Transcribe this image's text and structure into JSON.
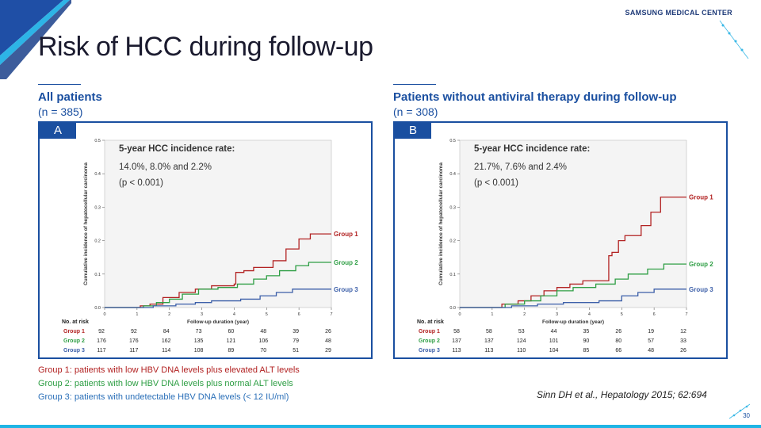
{
  "header": {
    "brand": "SAMSUNG MEDICAL CENTER",
    "title": "Risk of HCC during follow-up",
    "page_number": "30"
  },
  "colors": {
    "group1": "#b22222",
    "group2": "#2e9e44",
    "group3": "#3b5ea8",
    "accent": "#1a4fa0"
  },
  "left": {
    "heading": "All patients",
    "n": "(n = 385)",
    "tag": "A"
  },
  "right": {
    "heading": "Patients without antiviral therapy during follow-up",
    "n": "(n = 308)",
    "tag": "B"
  },
  "notes": {
    "g1": "Group 1: patients with low HBV DNA levels plus elevated ALT levels",
    "g2": "Group 2: patients with low HBV DNA levels plus normal ALT levels",
    "g3": "Group 3: patients with undetectable HBV DNA levels (< 12 IU/ml)"
  },
  "citation": "Sinn DH et al., Hepatology  2015; 62:694",
  "chart_data": [
    {
      "type": "line",
      "ylabel": "Cumulative incidence of hepatocellular carcinoma",
      "xlabel": "Follow-up duration (year)",
      "xlim": [
        0,
        7
      ],
      "ylim": [
        0,
        0.5
      ],
      "x_ticks": [
        "0",
        "1",
        "2",
        "3",
        "4",
        "5",
        "6",
        "7"
      ],
      "y_ticks": [
        "0.0",
        "0.1",
        "0.2",
        "0.3",
        "0.4",
        "0.5"
      ],
      "annotation": {
        "heading": "5-year HCC incidence rate:",
        "values": "14.0%, 8.0% and 2.2%",
        "p": "(p < 0.001)"
      },
      "series": [
        {
          "name": "Group 1",
          "color": "#b22222",
          "x": [
            0,
            1.1,
            1.4,
            1.8,
            2.3,
            2.8,
            3.3,
            4.0,
            4.05,
            4.3,
            4.6,
            5.2,
            5.6,
            6.0,
            6.35,
            7.0
          ],
          "y": [
            0,
            0.005,
            0.01,
            0.03,
            0.045,
            0.055,
            0.065,
            0.07,
            0.105,
            0.11,
            0.12,
            0.14,
            0.175,
            0.205,
            0.22,
            0.22
          ]
        },
        {
          "name": "Group 2",
          "color": "#2e9e44",
          "x": [
            0,
            1.2,
            1.6,
            2.0,
            2.4,
            2.9,
            3.5,
            4.1,
            4.6,
            5.0,
            5.4,
            5.9,
            6.3,
            7.0
          ],
          "y": [
            0,
            0.005,
            0.015,
            0.025,
            0.04,
            0.055,
            0.06,
            0.07,
            0.085,
            0.095,
            0.11,
            0.125,
            0.135,
            0.135
          ]
        },
        {
          "name": "Group 3",
          "color": "#3b5ea8",
          "x": [
            0,
            1.5,
            2.2,
            2.8,
            3.3,
            4.2,
            4.8,
            5.3,
            5.8,
            7.0
          ],
          "y": [
            0,
            0.005,
            0.01,
            0.015,
            0.02,
            0.025,
            0.035,
            0.045,
            0.055,
            0.055
          ]
        }
      ],
      "risk_table": {
        "header": "No. at risk",
        "rows": [
          {
            "label": "Group 1",
            "values": [
              "92",
              "92",
              "84",
              "73",
              "60",
              "48",
              "39",
              "26"
            ]
          },
          {
            "label": "Group 2",
            "values": [
              "176",
              "176",
              "162",
              "135",
              "121",
              "106",
              "79",
              "48"
            ]
          },
          {
            "label": "Group 3",
            "values": [
              "117",
              "117",
              "114",
              "108",
              "89",
              "70",
              "51",
              "29"
            ]
          }
        ]
      }
    },
    {
      "type": "line",
      "ylabel": "Cumulative incidence of hepatocellular carcinoma",
      "xlabel": "Follow-up duration (year)",
      "xlim": [
        0,
        7
      ],
      "ylim": [
        0,
        0.5
      ],
      "x_ticks": [
        "0",
        "1",
        "2",
        "3",
        "4",
        "5",
        "6",
        "7"
      ],
      "y_ticks": [
        "0.0",
        "0.1",
        "0.2",
        "0.3",
        "0.4",
        "0.5"
      ],
      "annotation": {
        "heading": "5-year HCC incidence rate:",
        "values": "21.7%, 7.6% and 2.4%",
        "p": "(p < 0.001)"
      },
      "series": [
        {
          "name": "Group 1",
          "color": "#b22222",
          "x": [
            0,
            1.3,
            1.8,
            2.2,
            2.6,
            3.0,
            3.4,
            3.8,
            4.3,
            4.6,
            4.7,
            4.9,
            5.1,
            5.6,
            5.9,
            6.2,
            7.0
          ],
          "y": [
            0,
            0.01,
            0.02,
            0.035,
            0.05,
            0.06,
            0.07,
            0.08,
            0.08,
            0.155,
            0.165,
            0.2,
            0.215,
            0.245,
            0.285,
            0.33,
            0.33
          ]
        },
        {
          "name": "Group 2",
          "color": "#2e9e44",
          "x": [
            0,
            1.4,
            2.0,
            2.5,
            3.0,
            3.5,
            4.2,
            4.8,
            5.2,
            5.8,
            6.3,
            7.0
          ],
          "y": [
            0,
            0.01,
            0.02,
            0.035,
            0.05,
            0.06,
            0.07,
            0.085,
            0.1,
            0.115,
            0.13,
            0.13
          ]
        },
        {
          "name": "Group 3",
          "color": "#3b5ea8",
          "x": [
            0,
            1.6,
            2.4,
            3.2,
            4.3,
            5.0,
            5.5,
            6.0,
            7.0
          ],
          "y": [
            0,
            0.005,
            0.01,
            0.015,
            0.02,
            0.035,
            0.045,
            0.055,
            0.055
          ]
        }
      ],
      "risk_table": {
        "header": "No. at risk",
        "rows": [
          {
            "label": "Group 1",
            "values": [
              "58",
              "58",
              "53",
              "44",
              "35",
              "26",
              "19",
              "12"
            ]
          },
          {
            "label": "Group 2",
            "values": [
              "137",
              "137",
              "124",
              "101",
              "90",
              "80",
              "57",
              "33"
            ]
          },
          {
            "label": "Group 3",
            "values": [
              "113",
              "113",
              "110",
              "104",
              "85",
              "66",
              "48",
              "26"
            ]
          }
        ]
      }
    }
  ]
}
